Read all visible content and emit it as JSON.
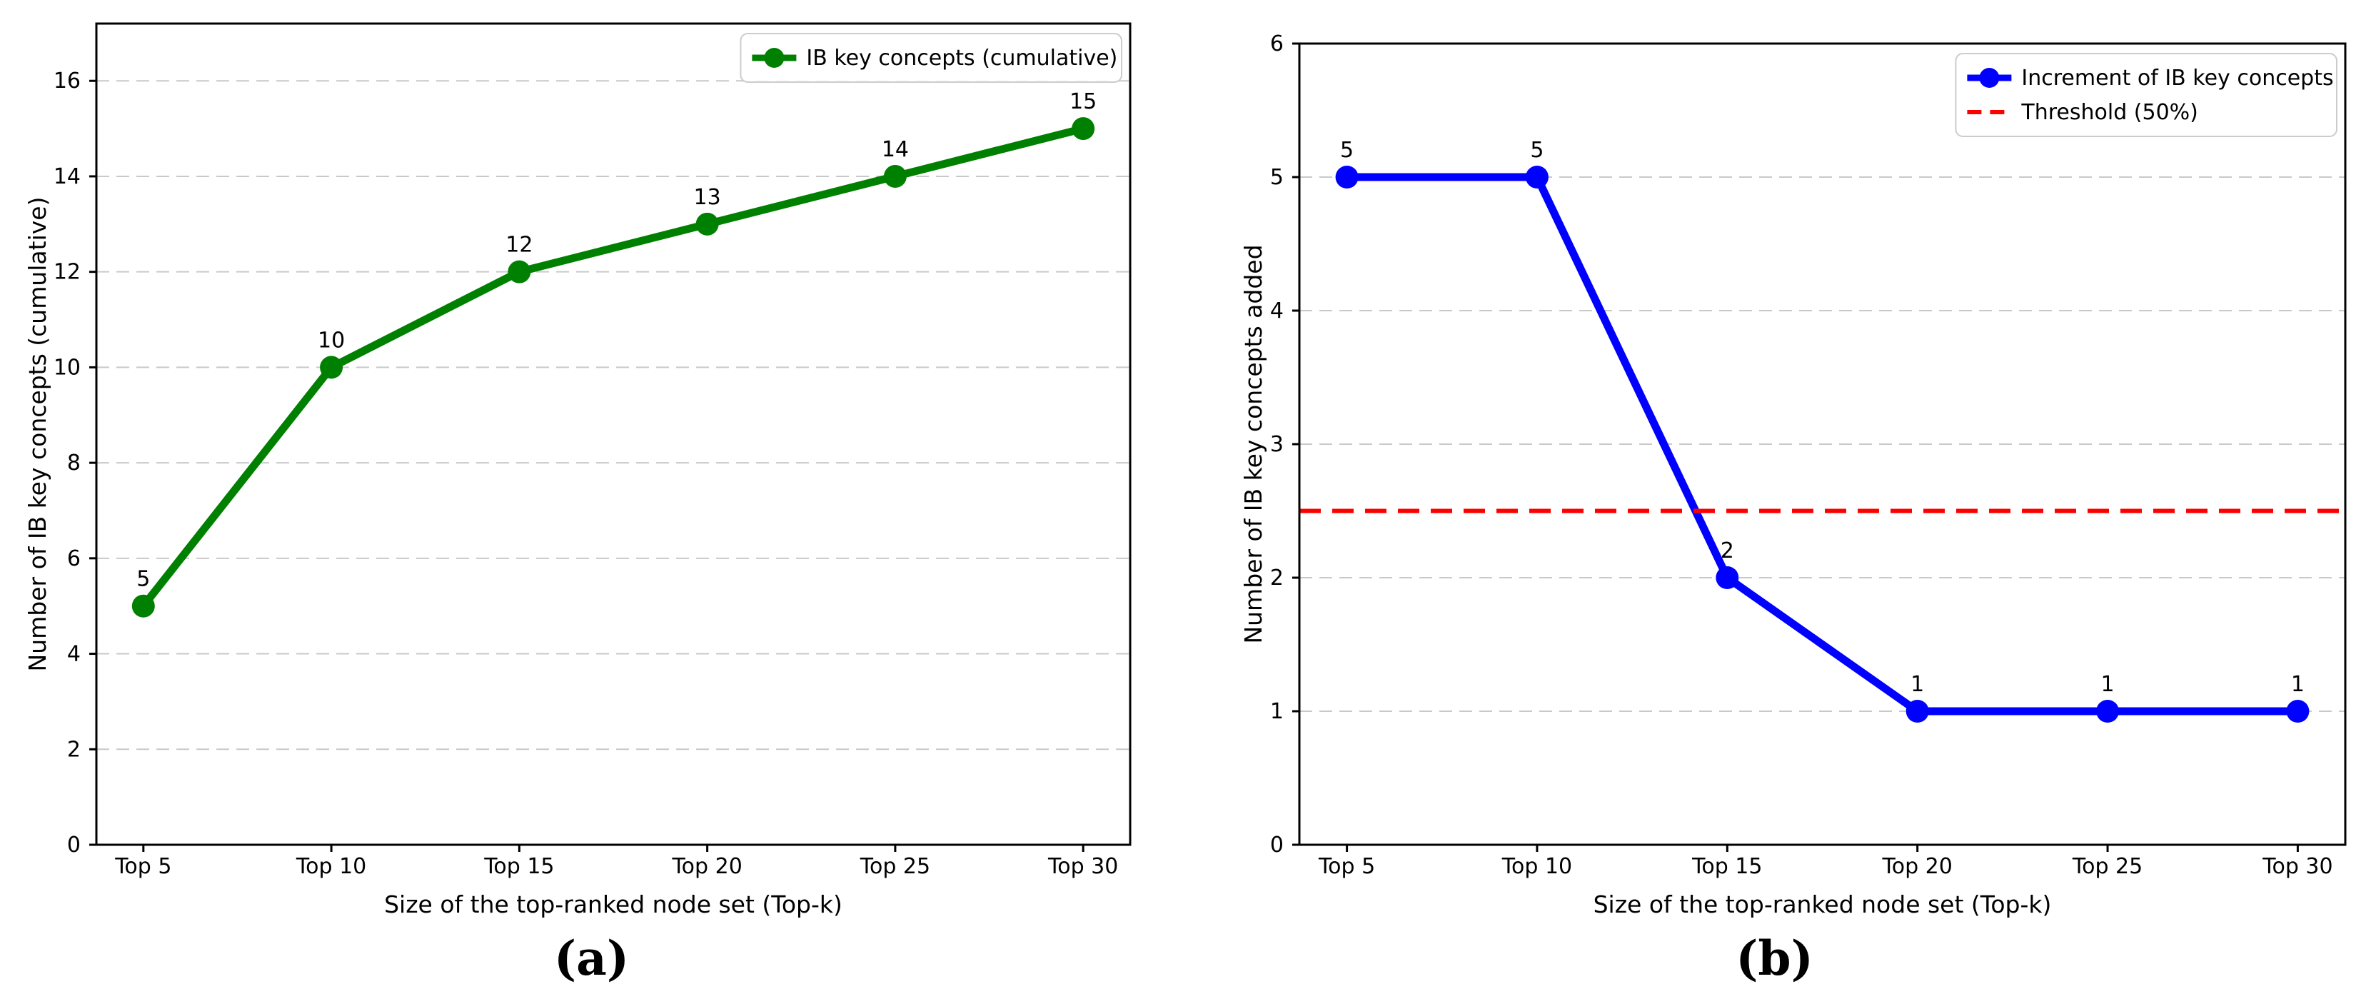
{
  "figure": {
    "caption_a": "(a)",
    "caption_b": "(b)",
    "background_color": "#ffffff",
    "text_color": "#000000",
    "grid_color": "#c9c9c9"
  },
  "chart_data": [
    {
      "type": "line",
      "panel": "a",
      "categories": [
        "Top 5",
        "Top 10",
        "Top 15",
        "Top 20",
        "Top 25",
        "Top 30"
      ],
      "xlabel": "Size of the top-ranked node set (Top-k)",
      "ylabel": "Number of IB key concepts (cumulative)",
      "ylim": [
        0,
        17.2
      ],
      "yticks": [
        0,
        2,
        4,
        6,
        8,
        10,
        12,
        14,
        16
      ],
      "grid": "y-dashed",
      "legend_position": "upper right",
      "series": [
        {
          "name": "IB key concepts (cumulative)",
          "values": [
            5,
            10,
            12,
            13,
            14,
            15
          ],
          "point_labels": [
            "5",
            "10",
            "12",
            "13",
            "14",
            "15"
          ],
          "color": "#008000",
          "marker": "circle",
          "dashed": false
        }
      ]
    },
    {
      "type": "line",
      "panel": "b",
      "categories": [
        "Top 5",
        "Top 10",
        "Top 15",
        "Top 20",
        "Top 25",
        "Top 30"
      ],
      "xlabel": "Size of the top-ranked node set (Top-k)",
      "ylabel": "Number of IB key concepts added",
      "ylim": [
        0,
        6
      ],
      "yticks": [
        0,
        1,
        2,
        3,
        4,
        5,
        6
      ],
      "grid": "y-dashed",
      "legend_position": "upper right",
      "series": [
        {
          "name": "Increment of IB key concepts",
          "values": [
            5,
            5,
            2,
            1,
            1,
            1
          ],
          "point_labels": [
            "5",
            "5",
            "2",
            "1",
            "1",
            "1"
          ],
          "color": "#0000ff",
          "marker": "circle",
          "dashed": false
        },
        {
          "name": "Threshold (50%)",
          "hline": 2.5,
          "color": "#ff0000",
          "marker": null,
          "dashed": true
        }
      ]
    }
  ]
}
